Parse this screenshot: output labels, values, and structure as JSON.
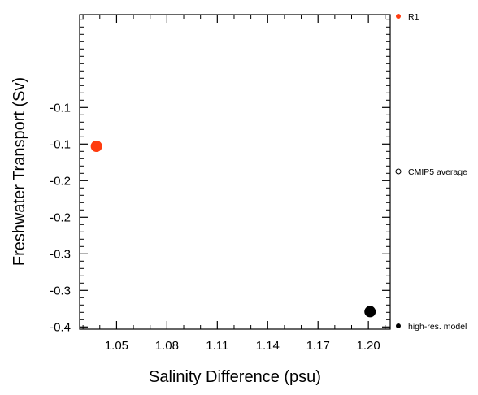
{
  "chart_data": {
    "type": "scatter",
    "xlabel": "Salinity Difference (psu)",
    "ylabel": "Freshwater Transport (Sv)",
    "xlim": [
      1.028,
      1.213
    ],
    "ylim": [
      -0.403,
      0.027
    ],
    "x_ticks": [
      1.05,
      1.08,
      1.11,
      1.14,
      1.17,
      1.2
    ],
    "x_tick_labels": [
      "1.05",
      "1.08",
      "1.11",
      "1.14",
      "1.17",
      "1.20"
    ],
    "y_ticks": [
      -0.4,
      -0.35,
      -0.3,
      -0.25,
      -0.2,
      -0.15,
      -0.1
    ],
    "y_tick_labels": [
      "-0.4",
      "-0.3",
      "-0.3",
      "-0.2",
      "-0.2",
      "-0.1",
      "-0.1"
    ],
    "grid": false,
    "legend_position": "right",
    "points": [
      {
        "x": 1.038,
        "y": -0.153,
        "color": "#ff3c0f",
        "series": 0
      },
      {
        "x": 1.201,
        "y": -0.379,
        "color": "#000000",
        "series": 2
      }
    ],
    "legend": [
      {
        "label": "R1",
        "marker": "filled",
        "color": "#ff3c0f"
      },
      {
        "label": "CMIP5 average",
        "marker": "hollow",
        "color": "#000000"
      },
      {
        "label": "high-res. model",
        "marker": "filled",
        "color": "#000000"
      }
    ]
  }
}
